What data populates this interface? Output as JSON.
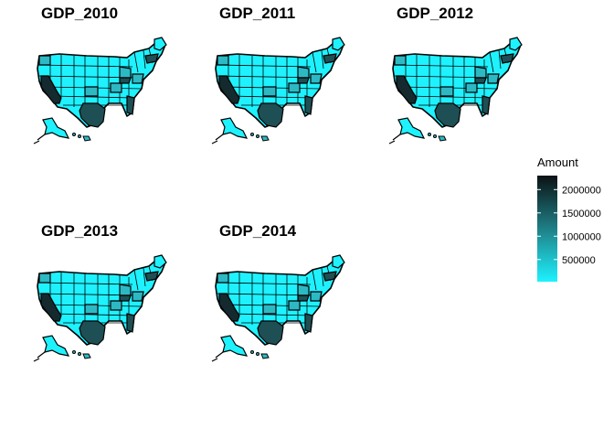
{
  "panels": [
    {
      "title": "GDP_2010"
    },
    {
      "title": "GDP_2011"
    },
    {
      "title": "GDP_2012"
    },
    {
      "title": "GDP_2013"
    },
    {
      "title": "GDP_2014"
    }
  ],
  "legend": {
    "title": "Amount",
    "ticks": [
      {
        "label": "2000000",
        "value": 2000000
      },
      {
        "label": "1500000",
        "value": 1500000
      },
      {
        "label": "1000000",
        "value": 1000000
      },
      {
        "label": "500000",
        "value": 500000
      }
    ],
    "min": 25000,
    "max": 2300000,
    "low_color": "#1ef2ff",
    "mid_color": "#1f7f86",
    "high_color": "#0b1214"
  },
  "colors": {
    "state_light": "#1ef2ff",
    "state_medium": "#2db9c4",
    "state_dark": "#1e4f54",
    "state_darkest": "#142a2e",
    "border": "#000000"
  }
}
